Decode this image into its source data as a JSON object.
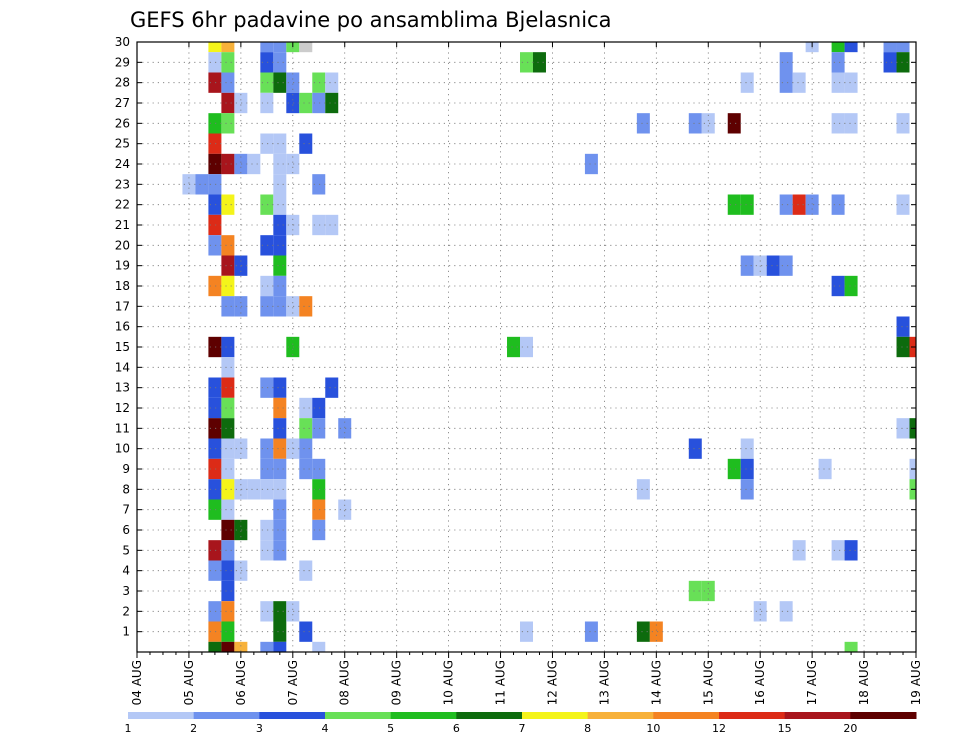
{
  "chart_data": {
    "type": "heatmap",
    "title": "GEFS 6hr padavine po ansamblima Bjelasnica",
    "xlabel": "",
    "ylabel": "",
    "x_ticks": [
      "04 AUG",
      "05 AUG",
      "06 AUG",
      "07 AUG",
      "08 AUG",
      "09 AUG",
      "10 AUG",
      "11 AUG",
      "12 AUG",
      "13 AUG",
      "14 AUG",
      "15 AUG",
      "16 AUG",
      "17 AUG",
      "18 AUG",
      "19 AUG"
    ],
    "xlim": [
      "2021-08-04T00",
      "2021-08-19T00"
    ],
    "step_hours": 6,
    "y_ticks": [
      1,
      2,
      3,
      4,
      5,
      6,
      7,
      8,
      9,
      10,
      11,
      12,
      13,
      14,
      15,
      16,
      17,
      18,
      19,
      20,
      21,
      22,
      23,
      24,
      25,
      26,
      27,
      28,
      29,
      30
    ],
    "ylim": [
      0,
      30
    ],
    "grid": true,
    "legend": {
      "position": "bottom",
      "levels": [
        1,
        2,
        3,
        4,
        5,
        6,
        7,
        8,
        10,
        12,
        15,
        20
      ],
      "colors": [
        "#b4c8f6",
        "#6f92ee",
        "#2851dc",
        "#68e057",
        "#1fbd1f",
        "#0d6b0d",
        "#f4f41a",
        "#f7b13a",
        "#f48322",
        "#dc2b17",
        "#a8151c",
        "#5e0000"
      ]
    },
    "cells": [
      [
        "2021-08-05T12",
        30,
        7
      ],
      [
        "2021-08-05T18",
        30,
        8
      ],
      [
        "2021-08-06T12",
        30,
        2
      ],
      [
        "2021-08-06T18",
        30,
        2
      ],
      [
        "2021-08-07T00",
        30,
        4
      ],
      [
        "2021-08-07T06",
        30,
        9
      ],
      [
        "2021-08-17T00",
        30,
        1
      ],
      [
        "2021-08-17T12",
        30,
        5
      ],
      [
        "2021-08-17T18",
        30,
        3
      ],
      [
        "2021-08-18T12",
        30,
        2
      ],
      [
        "2021-08-18T18",
        30,
        2
      ],
      [
        "2021-08-05T12",
        29,
        1
      ],
      [
        "2021-08-05T18",
        29,
        4
      ],
      [
        "2021-08-06T12",
        29,
        3
      ],
      [
        "2021-08-06T18",
        29,
        2
      ],
      [
        "2021-08-11T12",
        29,
        4
      ],
      [
        "2021-08-11T18",
        29,
        6
      ],
      [
        "2021-08-16T12",
        29,
        2
      ],
      [
        "2021-08-17T12",
        29,
        2
      ],
      [
        "2021-08-18T12",
        29,
        3
      ],
      [
        "2021-08-18T18",
        29,
        6
      ],
      [
        "2021-08-05T12",
        28,
        15
      ],
      [
        "2021-08-05T18",
        28,
        2
      ],
      [
        "2021-08-06T12",
        28,
        4
      ],
      [
        "2021-08-06T18",
        28,
        6
      ],
      [
        "2021-08-07T00",
        28,
        2
      ],
      [
        "2021-08-07T12",
        28,
        4
      ],
      [
        "2021-08-07T18",
        28,
        1
      ],
      [
        "2021-08-15T18",
        28,
        1
      ],
      [
        "2021-08-16T12",
        28,
        2
      ],
      [
        "2021-08-16T18",
        28,
        1
      ],
      [
        "2021-08-17T12",
        28,
        1
      ],
      [
        "2021-08-17T18",
        28,
        1
      ],
      [
        "2021-08-05T18",
        27,
        15
      ],
      [
        "2021-08-06T00",
        27,
        1
      ],
      [
        "2021-08-06T12",
        27,
        1
      ],
      [
        "2021-08-07T00",
        27,
        3
      ],
      [
        "2021-08-07T06",
        27,
        4
      ],
      [
        "2021-08-07T12",
        27,
        2
      ],
      [
        "2021-08-07T18",
        27,
        6
      ],
      [
        "2021-08-05T12",
        26,
        5
      ],
      [
        "2021-08-05T18",
        26,
        4
      ],
      [
        "2021-08-13T18",
        26,
        2
      ],
      [
        "2021-08-14T18",
        26,
        2
      ],
      [
        "2021-08-15T00",
        26,
        1
      ],
      [
        "2021-08-15T12",
        26,
        20
      ],
      [
        "2021-08-17T12",
        26,
        1
      ],
      [
        "2021-08-17T18",
        26,
        1
      ],
      [
        "2021-08-18T18",
        26,
        1
      ],
      [
        "2021-08-05T12",
        25,
        12
      ],
      [
        "2021-08-06T12",
        25,
        1
      ],
      [
        "2021-08-06T18",
        25,
        1
      ],
      [
        "2021-08-07T06",
        25,
        3
      ],
      [
        "2021-08-05T12",
        24,
        20
      ],
      [
        "2021-08-05T18",
        24,
        15
      ],
      [
        "2021-08-06T00",
        24,
        2
      ],
      [
        "2021-08-06T06",
        24,
        1
      ],
      [
        "2021-08-06T18",
        24,
        1
      ],
      [
        "2021-08-07T00",
        24,
        1
      ],
      [
        "2021-08-12T18",
        24,
        2
      ],
      [
        "2021-08-05T00",
        23,
        1
      ],
      [
        "2021-08-05T06",
        23,
        2
      ],
      [
        "2021-08-05T12",
        23,
        2
      ],
      [
        "2021-08-06T18",
        23,
        1
      ],
      [
        "2021-08-07T12",
        23,
        2
      ],
      [
        "2021-08-05T12",
        22,
        3
      ],
      [
        "2021-08-05T18",
        22,
        7
      ],
      [
        "2021-08-06T12",
        22,
        4
      ],
      [
        "2021-08-06T18",
        22,
        1
      ],
      [
        "2021-08-15T12",
        22,
        5
      ],
      [
        "2021-08-15T18",
        22,
        5
      ],
      [
        "2021-08-16T12",
        22,
        2
      ],
      [
        "2021-08-16T18",
        22,
        12
      ],
      [
        "2021-08-17T00",
        22,
        2
      ],
      [
        "2021-08-17T12",
        22,
        2
      ],
      [
        "2021-08-18T18",
        22,
        1
      ],
      [
        "2021-08-05T12",
        21,
        12
      ],
      [
        "2021-08-06T18",
        21,
        3
      ],
      [
        "2021-08-07T00",
        21,
        1
      ],
      [
        "2021-08-07T12",
        21,
        1
      ],
      [
        "2021-08-07T18",
        21,
        1
      ],
      [
        "2021-08-05T12",
        20,
        2
      ],
      [
        "2021-08-05T18",
        20,
        10
      ],
      [
        "2021-08-06T12",
        20,
        3
      ],
      [
        "2021-08-06T18",
        20,
        3
      ],
      [
        "2021-08-05T18",
        19,
        15
      ],
      [
        "2021-08-06T00",
        19,
        3
      ],
      [
        "2021-08-06T18",
        19,
        5
      ],
      [
        "2021-08-15T18",
        19,
        2
      ],
      [
        "2021-08-16T00",
        19,
        1
      ],
      [
        "2021-08-16T06",
        19,
        3
      ],
      [
        "2021-08-16T12",
        19,
        2
      ],
      [
        "2021-08-05T12",
        18,
        10
      ],
      [
        "2021-08-05T18",
        18,
        7
      ],
      [
        "2021-08-06T12",
        18,
        1
      ],
      [
        "2021-08-06T18",
        18,
        2
      ],
      [
        "2021-08-17T12",
        18,
        3
      ],
      [
        "2021-08-17T18",
        18,
        5
      ],
      [
        "2021-08-05T18",
        17,
        2
      ],
      [
        "2021-08-06T00",
        17,
        2
      ],
      [
        "2021-08-06T12",
        17,
        2
      ],
      [
        "2021-08-06T18",
        17,
        2
      ],
      [
        "2021-08-07T00",
        17,
        1
      ],
      [
        "2021-08-07T06",
        17,
        10
      ],
      [
        "2021-08-18T18",
        16,
        3
      ],
      [
        "2021-08-05T12",
        15,
        20
      ],
      [
        "2021-08-05T18",
        15,
        3
      ],
      [
        "2021-08-07T00",
        15,
        5
      ],
      [
        "2021-08-11T06",
        15,
        5
      ],
      [
        "2021-08-11T12",
        15,
        1
      ],
      [
        "2021-08-18T18",
        15,
        6
      ],
      [
        "2021-08-19T00",
        15,
        12
      ],
      [
        "2021-08-05T18",
        14,
        1
      ],
      [
        "2021-08-05T12",
        13,
        3
      ],
      [
        "2021-08-05T18",
        13,
        12
      ],
      [
        "2021-08-06T12",
        13,
        2
      ],
      [
        "2021-08-06T18",
        13,
        3
      ],
      [
        "2021-08-07T18",
        13,
        3
      ],
      [
        "2021-08-05T12",
        12,
        3
      ],
      [
        "2021-08-05T18",
        12,
        4
      ],
      [
        "2021-08-06T18",
        12,
        10
      ],
      [
        "2021-08-07T06",
        12,
        1
      ],
      [
        "2021-08-07T12",
        12,
        3
      ],
      [
        "2021-08-05T12",
        11,
        20
      ],
      [
        "2021-08-05T18",
        11,
        6
      ],
      [
        "2021-08-06T18",
        11,
        3
      ],
      [
        "2021-08-07T06",
        11,
        4
      ],
      [
        "2021-08-07T12",
        11,
        2
      ],
      [
        "2021-08-08T00",
        11,
        2
      ],
      [
        "2021-08-18T18",
        11,
        1
      ],
      [
        "2021-08-19T00",
        11,
        6
      ],
      [
        "2021-08-05T12",
        10,
        3
      ],
      [
        "2021-08-05T18",
        10,
        1
      ],
      [
        "2021-08-06T00",
        10,
        1
      ],
      [
        "2021-08-06T12",
        10,
        2
      ],
      [
        "2021-08-06T18",
        10,
        10
      ],
      [
        "2021-08-07T00",
        10,
        1
      ],
      [
        "2021-08-07T06",
        10,
        2
      ],
      [
        "2021-08-14T18",
        10,
        3
      ],
      [
        "2021-08-15T18",
        10,
        1
      ],
      [
        "2021-08-05T12",
        9,
        12
      ],
      [
        "2021-08-05T18",
        9,
        1
      ],
      [
        "2021-08-06T12",
        9,
        2
      ],
      [
        "2021-08-06T18",
        9,
        2
      ],
      [
        "2021-08-07T06",
        9,
        2
      ],
      [
        "2021-08-07T12",
        9,
        2
      ],
      [
        "2021-08-15T12",
        9,
        5
      ],
      [
        "2021-08-15T18",
        9,
        3
      ],
      [
        "2021-08-17T06",
        9,
        1
      ],
      [
        "2021-08-19T00",
        9,
        1
      ],
      [
        "2021-08-05T12",
        8,
        3
      ],
      [
        "2021-08-05T18",
        8,
        7
      ],
      [
        "2021-08-06T00",
        8,
        1
      ],
      [
        "2021-08-06T06",
        8,
        1
      ],
      [
        "2021-08-06T12",
        8,
        1
      ],
      [
        "2021-08-06T18",
        8,
        1
      ],
      [
        "2021-08-07T12",
        8,
        5
      ],
      [
        "2021-08-13T18",
        8,
        1
      ],
      [
        "2021-08-15T18",
        8,
        2
      ],
      [
        "2021-08-19T00",
        8,
        4
      ],
      [
        "2021-08-05T12",
        7,
        5
      ],
      [
        "2021-08-05T18",
        7,
        1
      ],
      [
        "2021-08-06T18",
        7,
        2
      ],
      [
        "2021-08-07T12",
        7,
        10
      ],
      [
        "2021-08-08T00",
        7,
        1
      ],
      [
        "2021-08-05T18",
        6,
        20
      ],
      [
        "2021-08-06T00",
        6,
        6
      ],
      [
        "2021-08-06T12",
        6,
        1
      ],
      [
        "2021-08-06T18",
        6,
        2
      ],
      [
        "2021-08-07T12",
        6,
        2
      ],
      [
        "2021-08-05T12",
        5,
        15
      ],
      [
        "2021-08-05T18",
        5,
        2
      ],
      [
        "2021-08-06T12",
        5,
        1
      ],
      [
        "2021-08-06T18",
        5,
        2
      ],
      [
        "2021-08-16T18",
        5,
        1
      ],
      [
        "2021-08-17T12",
        5,
        1
      ],
      [
        "2021-08-17T18",
        5,
        3
      ],
      [
        "2021-08-05T12",
        4,
        2
      ],
      [
        "2021-08-05T18",
        4,
        3
      ],
      [
        "2021-08-06T00",
        4,
        1
      ],
      [
        "2021-08-07T06",
        4,
        1
      ],
      [
        "2021-08-05T18",
        3,
        3
      ],
      [
        "2021-08-14T18",
        3,
        4
      ],
      [
        "2021-08-15T00",
        3,
        4
      ],
      [
        "2021-08-05T12",
        2,
        2
      ],
      [
        "2021-08-05T18",
        2,
        10
      ],
      [
        "2021-08-06T12",
        2,
        1
      ],
      [
        "2021-08-06T18",
        2,
        6
      ],
      [
        "2021-08-07T00",
        2,
        1
      ],
      [
        "2021-08-16T00",
        2,
        1
      ],
      [
        "2021-08-16T12",
        2,
        1
      ],
      [
        "2021-08-05T12",
        1,
        10
      ],
      [
        "2021-08-05T18",
        1,
        5
      ],
      [
        "2021-08-06T18",
        1,
        6
      ],
      [
        "2021-08-07T06",
        1,
        3
      ],
      [
        "2021-08-11T12",
        1,
        1
      ],
      [
        "2021-08-12T18",
        1,
        2
      ],
      [
        "2021-08-13T18",
        1,
        6
      ],
      [
        "2021-08-14T00",
        1,
        10
      ],
      [
        "2021-08-05T12",
        0,
        6
      ],
      [
        "2021-08-05T18",
        0,
        20
      ],
      [
        "2021-08-06T00",
        0,
        8
      ],
      [
        "2021-08-06T12",
        0,
        2
      ],
      [
        "2021-08-06T18",
        0,
        3
      ],
      [
        "2021-08-07T12",
        0,
        1
      ],
      [
        "2021-08-17T18",
        0,
        4
      ]
    ]
  }
}
